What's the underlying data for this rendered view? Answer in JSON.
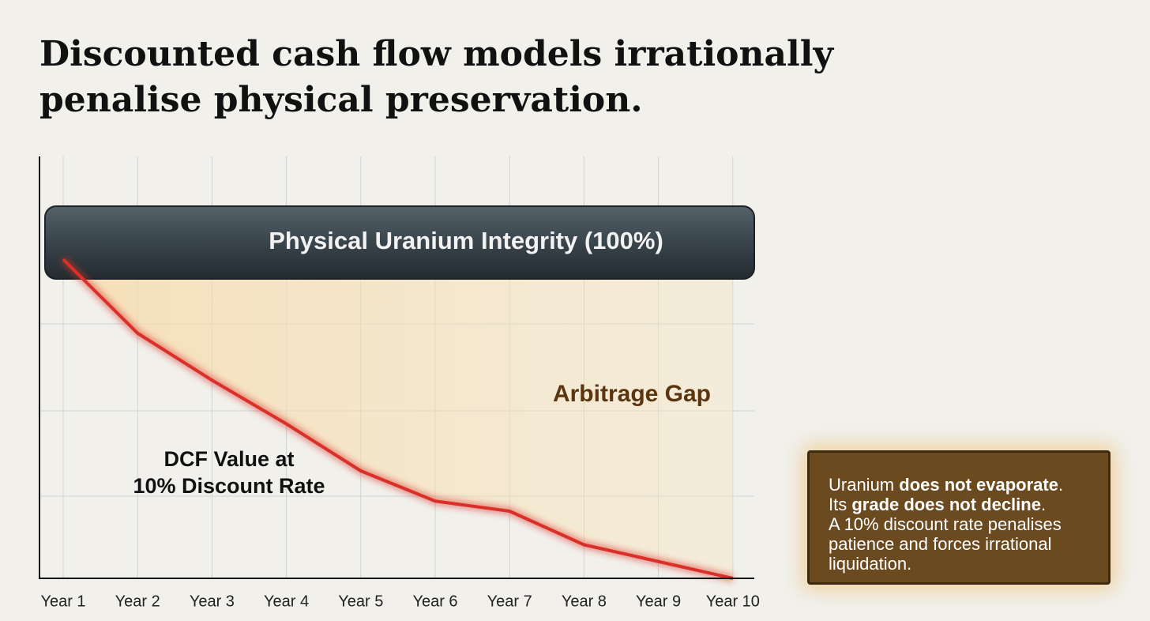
{
  "chart_data": {
    "type": "line",
    "title": "Discounted cash flow models irrationally penalise physical preservation.",
    "categories": [
      "Year 1",
      "Year 2",
      "Year 3",
      "Year 4",
      "Year 5",
      "Year 6",
      "Year 7",
      "Year 8",
      "Year 9",
      "Year 10"
    ],
    "series": [
      {
        "name": "DCF Value at 10% Discount Rate",
        "color": "#d9302a",
        "values": [
          95,
          73,
          59,
          46,
          32,
          23,
          20,
          10,
          5,
          0
        ]
      }
    ],
    "ylim": [
      0,
      100
    ],
    "reference": {
      "label": "Physical Uranium Integrity (100%)",
      "value": 100
    },
    "gap_label": "Arbitrage Gap",
    "callout": {
      "lines": [
        [
          {
            "text": "Uranium ",
            "bold": false
          },
          {
            "text": "does not evaporate",
            "bold": true
          },
          {
            "text": ".",
            "bold": false
          }
        ],
        [
          {
            "text": "Its ",
            "bold": false
          },
          {
            "text": "grade does not decline",
            "bold": true
          },
          {
            "text": ".",
            "bold": false
          }
        ],
        [
          {
            "text": "A 10% discount rate penalises",
            "bold": false
          }
        ],
        [
          {
            "text": "patience and forces irrational",
            "bold": false
          }
        ],
        [
          {
            "text": "liquidation.",
            "bold": false
          }
        ]
      ]
    }
  }
}
